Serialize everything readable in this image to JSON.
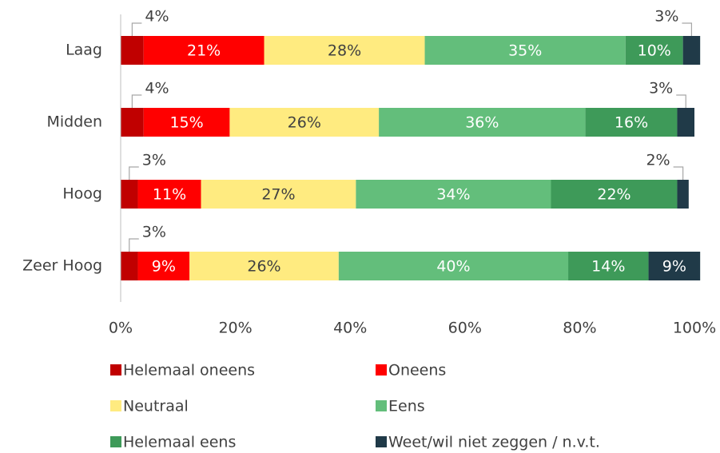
{
  "chart_data": {
    "type": "stacked-barh",
    "categories": [
      "Laag",
      "Midden",
      "Hoog",
      "Zeer Hoog"
    ],
    "series": [
      {
        "name": "Helemaal oneens",
        "color": "#c00000",
        "values": [
          4,
          4,
          3,
          3
        ],
        "value_labels": [
          "4%",
          "4%",
          "3%",
          "3%"
        ]
      },
      {
        "name": "Oneens",
        "color": "#ff0000",
        "values": [
          21,
          15,
          11,
          9
        ],
        "value_labels": [
          "21%",
          "15%",
          "11%",
          "9%"
        ]
      },
      {
        "name": "Neutraal",
        "color": "#ffeb80",
        "values": [
          28,
          26,
          27,
          26
        ],
        "value_labels": [
          "28%",
          "26%",
          "27%",
          "26%"
        ]
      },
      {
        "name": "Eens",
        "color": "#63be7b",
        "values": [
          35,
          36,
          34,
          40
        ],
        "value_labels": [
          "35%",
          "36%",
          "34%",
          "40%"
        ]
      },
      {
        "name": "Helemaal eens",
        "color": "#3e9a59",
        "values": [
          10,
          16,
          22,
          14
        ],
        "value_labels": [
          "10%",
          "16%",
          "22%",
          "14%"
        ]
      },
      {
        "name": "Weet/wil niet zeggen / n.v.t.",
        "color": "#203a48",
        "values": [
          3,
          3,
          2,
          9
        ],
        "value_labels": [
          "3%",
          "3%",
          "2%",
          "9%"
        ]
      }
    ],
    "xlim": [
      0,
      100
    ],
    "xticks": [
      {
        "value": 0,
        "label": "0%"
      },
      {
        "value": 20,
        "label": "20%"
      },
      {
        "value": 40,
        "label": "40%"
      },
      {
        "value": 60,
        "label": "60%"
      },
      {
        "value": 80,
        "label": "80%"
      },
      {
        "value": 100,
        "label": "100%"
      }
    ],
    "grid": false
  }
}
